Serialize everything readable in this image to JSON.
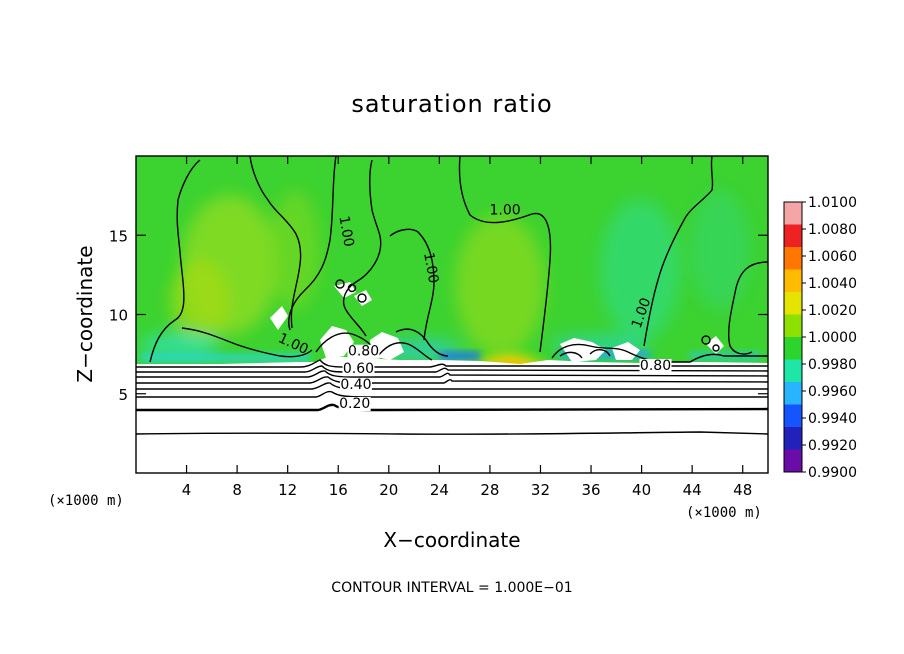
{
  "chart_data": {
    "type": "heatmap",
    "title": "saturation ratio",
    "xlabel": "X−coordinate",
    "ylabel": "Z−coordinate",
    "x_unit": "(×1000 m)",
    "y_unit": "(×1000 m)",
    "xlim": [
      0,
      50
    ],
    "ylim": [
      0,
      20
    ],
    "x_ticks": [
      4,
      8,
      12,
      16,
      20,
      24,
      28,
      32,
      36,
      40,
      44,
      48
    ],
    "x_tick_labels": [
      "4",
      "8",
      "12",
      "16",
      "20",
      "24",
      "28",
      "32",
      "36",
      "40",
      "44",
      "48"
    ],
    "y_ticks": [
      5,
      10,
      15
    ],
    "y_tick_labels": [
      "5",
      "10",
      "15"
    ],
    "colorbar": {
      "min": 0.99,
      "max": 1.01,
      "labels": [
        "1.0100",
        "1.0080",
        "1.0060",
        "1.0040",
        "1.0020",
        "1.0000",
        "0.9980",
        "0.9960",
        "0.9940",
        "0.9920",
        "0.9900"
      ],
      "colors": [
        "#f4a6a6",
        "#ee2222",
        "#ff7700",
        "#ffbb00",
        "#e4e400",
        "#8ee000",
        "#2ed42e",
        "#1ee6a6",
        "#28b4ff",
        "#1555ff",
        "#2222bb",
        "#6a0ca8"
      ]
    },
    "contour_interval": 0.1,
    "contour_labels": [
      {
        "text": "1.00",
        "x": 12.3,
        "z": 7.9
      },
      {
        "text": "1.00",
        "x": 16.3,
        "z": 15.2
      },
      {
        "text": "1.00",
        "x": 23.0,
        "z": 12.9
      },
      {
        "text": "1.00",
        "x": 29.2,
        "z": 16.3
      },
      {
        "text": "1.00",
        "x": 40.3,
        "z": 10.0
      },
      {
        "text": "0.80",
        "x": 18.0,
        "z": 7.4
      },
      {
        "text": "0.80",
        "x": 41.1,
        "z": 6.5
      },
      {
        "text": "0.60",
        "x": 17.6,
        "z": 6.3
      },
      {
        "text": "0.40",
        "x": 17.4,
        "z": 5.3
      },
      {
        "text": "0.20",
        "x": 17.3,
        "z": 4.1
      }
    ],
    "boundary_layer_top_km": 7.0,
    "below_boundary_contours_km": [
      6.6,
      6.3,
      6.0,
      5.7,
      5.3,
      4.9,
      4.1,
      2.5
    ]
  },
  "footer": "CONTOUR INTERVAL = 1.000E−01"
}
